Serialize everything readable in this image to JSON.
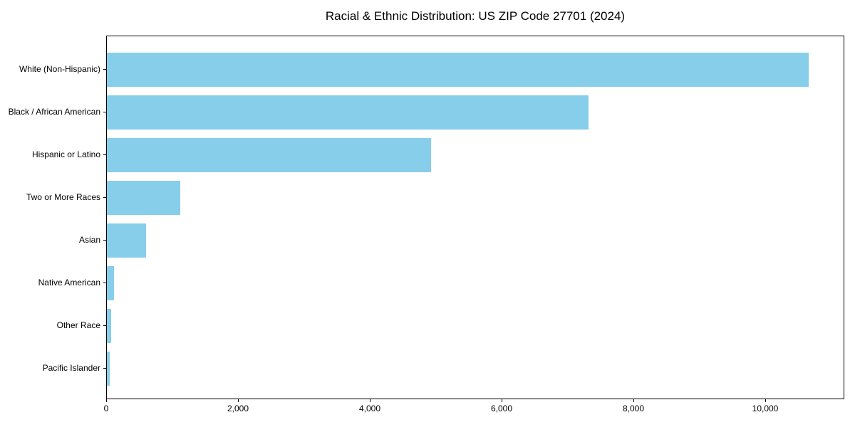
{
  "chart_data": {
    "type": "bar",
    "orientation": "horizontal",
    "title": "Racial & Ethnic Distribution: US ZIP Code 27701 (2024)",
    "categories": [
      "White (Non-Hispanic)",
      "Black / African American",
      "Hispanic or Latino",
      "Two or More Races",
      "Asian",
      "Native American",
      "Other Race",
      "Pacific Islander"
    ],
    "values": [
      10670,
      7320,
      4930,
      1120,
      600,
      110,
      60,
      40
    ],
    "bar_color": "#87CEEB",
    "xlabel": "",
    "ylabel": "",
    "xlim": [
      0,
      11200
    ],
    "x_ticks": [
      0,
      2000,
      4000,
      6000,
      8000,
      10000
    ],
    "x_tick_labels": [
      "0",
      "2,000",
      "4,000",
      "6,000",
      "8,000",
      "10,000"
    ],
    "grid": false,
    "legend_position": "none",
    "background_color": "#ffffff",
    "text_color": "#000000"
  }
}
